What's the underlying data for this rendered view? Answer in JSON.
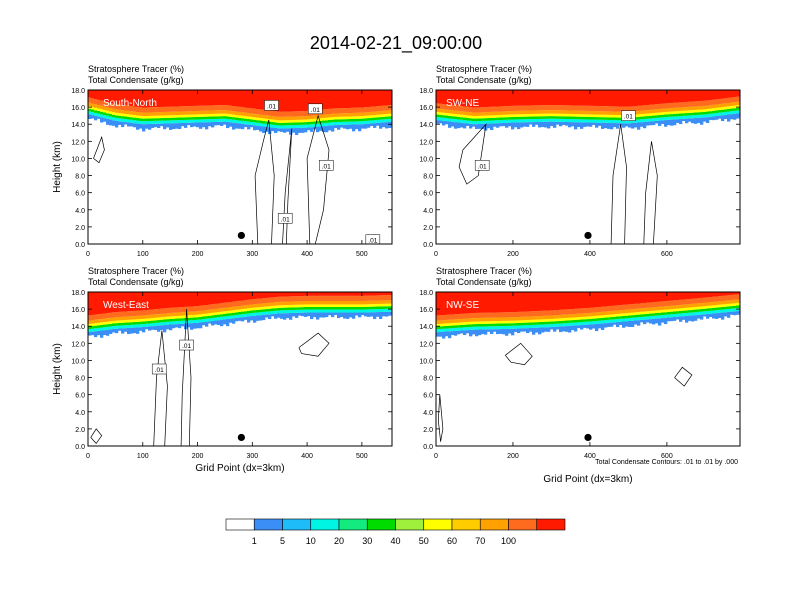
{
  "figure": {
    "title": "2014-02-21_09:00:00",
    "xlabel": "Grid Point (dx=3km)",
    "contour_note": "Total Condensate Contours: .01 to .01 by .000"
  },
  "colorbar": {
    "colors": [
      "#ffffff",
      "#3b8ef5",
      "#1fbcfa",
      "#00f5e3",
      "#13eb7f",
      "#00dc00",
      "#9ef03c",
      "#ffff00",
      "#ffcc00",
      "#ffa100",
      "#ff6b1e",
      "#ff1a00"
    ],
    "labels": [
      "1",
      "5",
      "10",
      "20",
      "30",
      "40",
      "50",
      "60",
      "70",
      "100"
    ]
  },
  "chart_data": [
    {
      "type": "heatmap",
      "title": "South-North",
      "subtitle_1": "Stratosphere Tracer   (%)",
      "subtitle_2": "Total Condensate   (g/kg)",
      "ylabel": "Height (km)",
      "xlabel": "",
      "xlim": [
        0,
        555
      ],
      "ylim": [
        0,
        18
      ],
      "xticks": [
        0,
        100,
        200,
        300,
        400,
        500
      ],
      "yticks": [
        "0.0",
        "2.0",
        "4.0",
        "6.0",
        "8.0",
        "10.0",
        "12.0",
        "14.0",
        "16.0",
        "18.0"
      ],
      "tracer_front_x": [
        0,
        50,
        100,
        150,
        200,
        250,
        300,
        350,
        400,
        450,
        500,
        555
      ],
      "tracer_front_km": [
        15.2,
        14.4,
        14.0,
        14.1,
        14.2,
        14.3,
        13.9,
        13.5,
        13.6,
        13.9,
        14.0,
        14.3
      ],
      "contour_labels": [
        {
          "text": ".01",
          "x": 335,
          "y": 16.2
        },
        {
          "text": ".01",
          "x": 415,
          "y": 15.8
        },
        {
          "text": ".01",
          "x": 435,
          "y": 9.2
        },
        {
          "text": ".01",
          "x": 360,
          "y": 3.0
        },
        {
          "text": ".01",
          "x": 520,
          "y": 0.5
        }
      ],
      "marker": {
        "x": 280,
        "y": 1.0
      }
    },
    {
      "type": "heatmap",
      "title": "SW-NE",
      "subtitle_1": "Stratosphere Tracer   (%)",
      "subtitle_2": "Total Condensate   (g/kg)",
      "ylabel": "",
      "xlabel": "",
      "xlim": [
        0,
        790
      ],
      "ylim": [
        0,
        18
      ],
      "xticks": [
        0,
        200,
        400,
        600
      ],
      "yticks": [
        "0.0",
        "2.0",
        "4.0",
        "6.0",
        "8.0",
        "10.0",
        "12.0",
        "14.0",
        "16.0",
        "18.0"
      ],
      "tracer_front_x": [
        0,
        100,
        200,
        300,
        400,
        500,
        600,
        700,
        790
      ],
      "tracer_front_km": [
        14.5,
        14.0,
        14.2,
        14.3,
        14.2,
        14.1,
        14.5,
        14.8,
        15.3
      ],
      "contour_labels": [
        {
          "text": ".01",
          "x": 500,
          "y": 15.0
        },
        {
          "text": ".01",
          "x": 120,
          "y": 9.2
        }
      ],
      "marker": {
        "x": 395,
        "y": 1.0
      }
    },
    {
      "type": "heatmap",
      "title": "West-East",
      "subtitle_1": "Stratosphere Tracer   (%)",
      "subtitle_2": "Total Condensate   (g/kg)",
      "ylabel": "Height (km)",
      "xlabel": "",
      "xlim": [
        0,
        555
      ],
      "ylim": [
        0,
        18
      ],
      "xticks": [
        0,
        100,
        200,
        300,
        400,
        500
      ],
      "yticks": [
        "0.0",
        "2.0",
        "4.0",
        "6.0",
        "8.0",
        "10.0",
        "12.0",
        "14.0",
        "16.0",
        "18.0"
      ],
      "tracer_front_x": [
        0,
        50,
        100,
        150,
        200,
        250,
        300,
        350,
        400,
        450,
        500,
        555
      ],
      "tracer_front_km": [
        13.3,
        13.7,
        13.9,
        14.2,
        14.4,
        14.8,
        15.2,
        15.5,
        15.6,
        15.6,
        15.6,
        15.7
      ],
      "contour_labels": [
        {
          "text": ".01",
          "x": 130,
          "y": 9.0
        },
        {
          "text": ".01",
          "x": 180,
          "y": 11.8
        }
      ],
      "marker": {
        "x": 280,
        "y": 1.0
      }
    },
    {
      "type": "heatmap",
      "title": "NW-SE",
      "subtitle_1": "Stratosphere Tracer   (%)",
      "subtitle_2": "Total Condensate   (g/kg)",
      "ylabel": "",
      "xlabel": "Grid Point (dx=3km)",
      "xlim": [
        0,
        790
      ],
      "ylim": [
        0,
        18
      ],
      "xticks": [
        0,
        200,
        400,
        600
      ],
      "yticks": [
        "0.0",
        "2.0",
        "4.0",
        "6.0",
        "8.0",
        "10.0",
        "12.0",
        "14.0",
        "16.0",
        "18.0"
      ],
      "tracer_front_x": [
        0,
        100,
        200,
        300,
        400,
        500,
        600,
        700,
        790
      ],
      "tracer_front_km": [
        13.3,
        13.6,
        13.7,
        13.9,
        14.2,
        14.6,
        15.0,
        15.4,
        15.8
      ],
      "contour_labels": [],
      "marker": {
        "x": 395,
        "y": 1.0
      }
    }
  ]
}
